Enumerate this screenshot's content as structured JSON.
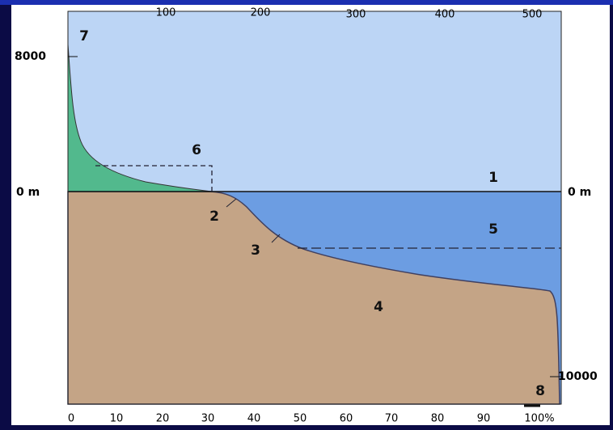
{
  "top_axis": {
    "ticks": [
      "100",
      "200",
      "300",
      "400",
      "500"
    ]
  },
  "bottom_axis": {
    "ticks": [
      "0",
      "10",
      "20",
      "30",
      "40",
      "50",
      "60",
      "70",
      "80",
      "90",
      "100%"
    ]
  },
  "left_axis": {
    "labels": [
      "8000",
      "0 m"
    ]
  },
  "right_axis": {
    "labels": [
      "0 m",
      "10000"
    ]
  },
  "callouts": [
    "1",
    "2",
    "3",
    "4",
    "5",
    "6",
    "7",
    "8"
  ]
}
